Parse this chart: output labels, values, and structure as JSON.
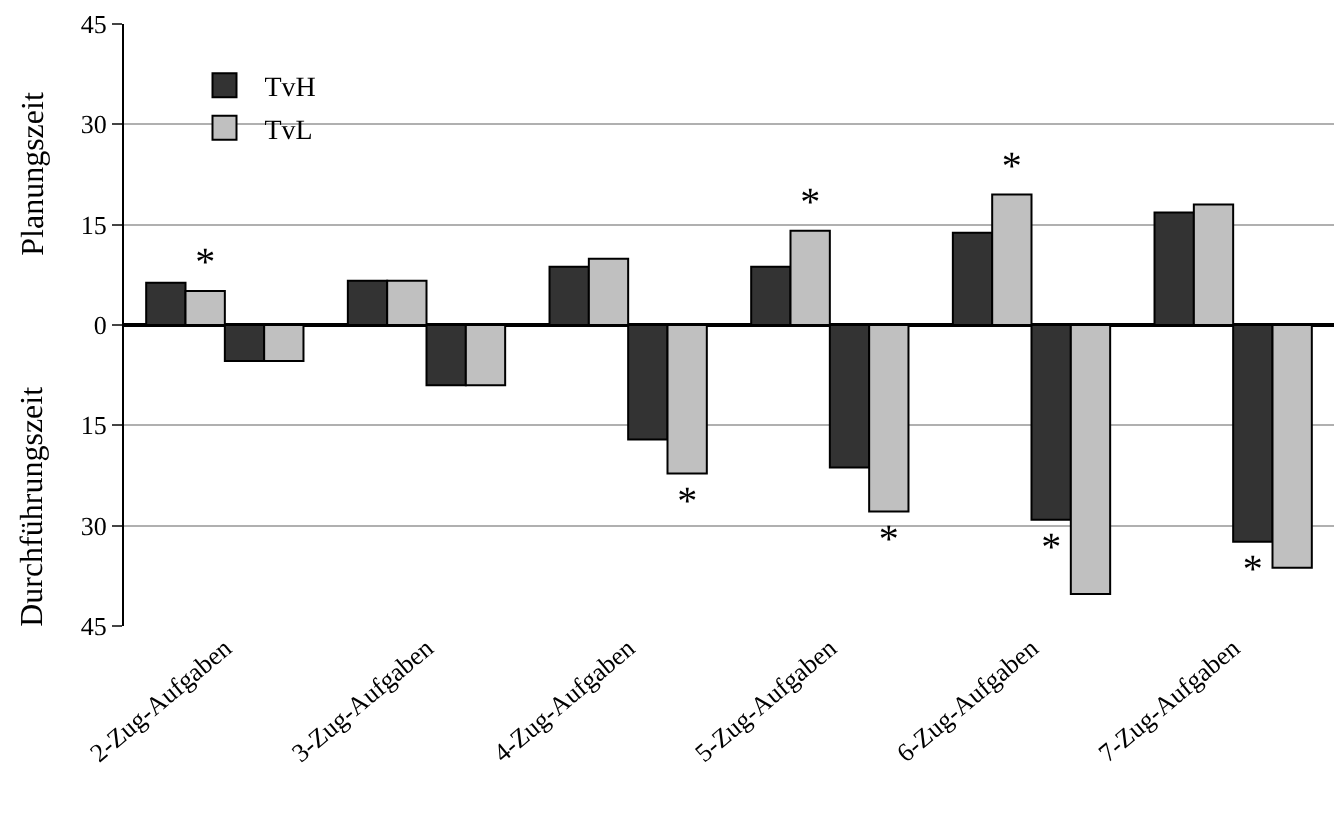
{
  "chart_data": {
    "type": "bar",
    "categories": [
      "2-Zug-Aufgaben",
      "3-Zug-Aufgaben",
      "4-Zug-Aufgaben",
      "5-Zug-Aufgaben",
      "6-Zug-Aufgaben",
      "7-Zug-Aufgaben"
    ],
    "series": [
      {
        "name": "TvH",
        "color": "#333333",
        "values": [
          6.3,
          6.6,
          8.7,
          8.7,
          13.8,
          16.8
        ]
      },
      {
        "name": "TvL",
        "color": "#c0c0c0",
        "values": [
          5.1,
          6.6,
          9.9,
          14.1,
          19.5,
          18.0
        ],
        "value_labels": [
          "*",
          null,
          null,
          "*",
          "*",
          null
        ]
      },
      {
        "color": "#333333",
        "values": [
          -5.4,
          -9.0,
          -17.1,
          -21.3,
          -29.1,
          -32.4
        ],
        "value_labels": [
          null,
          null,
          null,
          null,
          "*",
          "*"
        ]
      },
      {
        "color": "#c0c0c0",
        "values": [
          -5.4,
          -9.0,
          -22.2,
          -27.9,
          -40.2,
          -36.3
        ],
        "value_labels": [
          null,
          null,
          "*",
          "*",
          null,
          null
        ]
      }
    ],
    "ylabel": "Planungszeit",
    "annotations": [
      "Durchführungszeit"
    ],
    "ylim": [
      -45,
      45
    ],
    "yticks": [
      {
        "value": -45,
        "label": "45"
      },
      {
        "value": -30,
        "label": "30"
      },
      {
        "value": -15,
        "label": "15"
      },
      0,
      15,
      30,
      45
    ],
    "grid": "y",
    "legend": "top left"
  }
}
